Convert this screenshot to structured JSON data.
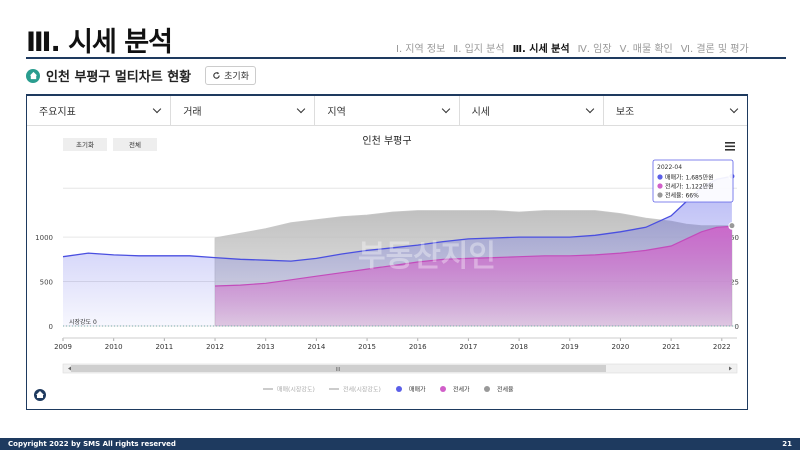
{
  "slide_title": "Ⅲ. 시세 분석",
  "nav": [
    "Ⅰ. 지역 정보",
    "Ⅱ. 입지 분석",
    "Ⅲ. 시세 분석",
    "Ⅳ. 임장",
    "Ⅴ. 매물 확인",
    "Ⅵ. 결론 및 평가"
  ],
  "nav_active": 2,
  "subtitle": "인천 부평구 멀티차트 현황",
  "reset_label": "초기화",
  "dropdowns": [
    "주요지표",
    "거래",
    "지역",
    "시세",
    "보조"
  ],
  "footer": {
    "copyright": "Copyright 2022 by SMS All rights reserved",
    "page": "21"
  },
  "chart_data": {
    "type": "area",
    "title": "인천 부평구",
    "buttons": [
      "초기화",
      "전체"
    ],
    "x_ticks": [
      "2009",
      "2010",
      "2011",
      "2012",
      "2013",
      "2014",
      "2015",
      "2016",
      "2017",
      "2018",
      "2019",
      "2020",
      "2021",
      "2022"
    ],
    "x_range": [
      2009,
      2022.3
    ],
    "y_left_ticks": [
      0,
      500,
      1000
    ],
    "y_left_range": [
      0,
      1800
    ],
    "y_right_ticks": [
      0,
      25,
      50
    ],
    "baseline_label": "시장강도 0",
    "series": [
      {
        "name": "매매가",
        "color": "#5b5fe8",
        "x": [
          2009,
          2009.5,
          2010,
          2010.5,
          2011,
          2011.5,
          2012,
          2012.5,
          2013,
          2013.5,
          2014,
          2014.5,
          2015,
          2015.5,
          2016,
          2016.5,
          2017,
          2017.5,
          2018,
          2018.5,
          2019,
          2019.5,
          2020,
          2020.5,
          2021,
          2021.3,
          2021.6,
          2021.9,
          2022.2
        ],
        "values": [
          780,
          820,
          800,
          790,
          790,
          790,
          770,
          750,
          740,
          730,
          760,
          810,
          850,
          880,
          910,
          950,
          980,
          990,
          1000,
          1000,
          1000,
          1020,
          1060,
          1110,
          1240,
          1400,
          1560,
          1650,
          1685
        ]
      },
      {
        "name": "전세가",
        "color": "#d15fc9",
        "x": [
          2012,
          2012.5,
          2013,
          2013.5,
          2014,
          2014.5,
          2015,
          2015.5,
          2016,
          2016.5,
          2017,
          2017.5,
          2018,
          2018.5,
          2019,
          2019.5,
          2020,
          2020.5,
          2021,
          2021.3,
          2021.6,
          2021.9,
          2022.2
        ],
        "values": [
          450,
          460,
          480,
          520,
          560,
          600,
          640,
          680,
          720,
          750,
          760,
          770,
          780,
          790,
          790,
          800,
          820,
          850,
          900,
          980,
          1060,
          1110,
          1122
        ]
      },
      {
        "name": "전세율",
        "color": "#aaaaaa",
        "x": [
          2012,
          2012.5,
          2013,
          2013.5,
          2014,
          2014.5,
          2015,
          2015.5,
          2016,
          2016.5,
          2017,
          2017.5,
          2018,
          2018.5,
          2019,
          2019.5,
          2020,
          2020.5,
          2021,
          2021.3,
          2021.6,
          2021.9,
          2022.2
        ],
        "values": [
          58,
          61,
          64,
          68,
          70,
          72,
          73,
          75,
          76,
          76,
          76,
          76,
          75,
          76,
          76,
          76,
          74,
          71,
          69,
          67,
          66,
          66,
          66
        ]
      }
    ],
    "tooltip": {
      "date": "2022-04",
      "rows": [
        "매매가: 1,685만원",
        "전세가: 1,122만원",
        "전세율: 66%"
      ]
    },
    "legend": [
      {
        "label": "매매(시장강도)",
        "color": "#bbbbbb",
        "kind": "line"
      },
      {
        "label": "전세(시장강도)",
        "color": "#bbbbbb",
        "kind": "line"
      },
      {
        "label": "매매가",
        "color": "#5b5fe8",
        "kind": "dot"
      },
      {
        "label": "전세가",
        "color": "#d15fc9",
        "kind": "dot"
      },
      {
        "label": "전세율",
        "color": "#999999",
        "kind": "dot"
      }
    ],
    "scroll_label": "III",
    "watermark": "부동산지인"
  }
}
